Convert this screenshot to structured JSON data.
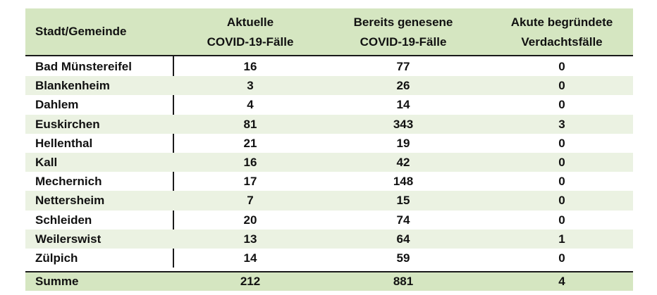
{
  "table": {
    "header": [
      "Stadt/Gemeinde",
      [
        "Aktuelle",
        "COVID-19-Fälle"
      ],
      [
        "Bereits genesene",
        "COVID-19-Fälle"
      ],
      [
        "Akute begründete",
        "Verdachtsfälle"
      ]
    ],
    "rows": [
      [
        "Bad Münstereifel",
        16,
        77,
        0
      ],
      [
        "Blankenheim",
        3,
        26,
        0
      ],
      [
        "Dahlem",
        4,
        14,
        0
      ],
      [
        "Euskirchen",
        81,
        343,
        3
      ],
      [
        "Hellenthal",
        21,
        19,
        0
      ],
      [
        "Kall",
        16,
        42,
        0
      ],
      [
        "Mechernich",
        17,
        148,
        0
      ],
      [
        "Nettersheim",
        7,
        15,
        0
      ],
      [
        "Schleiden",
        20,
        74,
        0
      ],
      [
        "Weilerswist",
        13,
        64,
        1
      ],
      [
        "Zülpich",
        14,
        59,
        0
      ]
    ],
    "total": [
      "Summe",
      212,
      881,
      4
    ]
  }
}
